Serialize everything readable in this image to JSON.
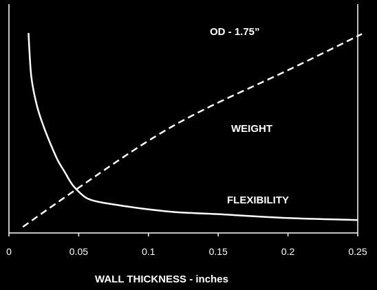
{
  "chart_data": {
    "type": "line",
    "title": "",
    "xlabel": "WALL THICKNESS - inches",
    "ylabel": "",
    "xlim": [
      0,
      0.25
    ],
    "x_ticks": [
      0,
      0.05,
      0.1,
      0.15,
      0.2,
      0.25
    ],
    "x_tick_labels": [
      "0",
      "0.05",
      "0.1",
      "0.15",
      "0.2",
      "0.25"
    ],
    "y_ticks_shown": false,
    "grid": false,
    "legend": "none",
    "background_color": "#000000",
    "line_color": "#ffffff",
    "annotations": [
      "OD - 1.75”",
      "WEIGHT",
      "FLEXIBILITY"
    ],
    "series": [
      {
        "label_text_ref": "annotations.2",
        "style": "solid",
        "points": [
          [
            0.014,
            1.0
          ],
          [
            0.016,
            0.78
          ],
          [
            0.02,
            0.63
          ],
          [
            0.025,
            0.52
          ],
          [
            0.03,
            0.43
          ],
          [
            0.035,
            0.35
          ],
          [
            0.04,
            0.29
          ],
          [
            0.045,
            0.23
          ],
          [
            0.05,
            0.19
          ],
          [
            0.055,
            0.16
          ],
          [
            0.06,
            0.145
          ],
          [
            0.07,
            0.13
          ],
          [
            0.094,
            0.105
          ],
          [
            0.12,
            0.085
          ],
          [
            0.15,
            0.075
          ],
          [
            0.2,
            0.055
          ],
          [
            0.25,
            0.045
          ]
        ]
      },
      {
        "label_text_ref": "annotations.1",
        "style": "dashed",
        "points": [
          [
            0.01,
            0.01
          ],
          [
            0.05,
            0.21
          ],
          [
            0.1,
            0.45
          ],
          [
            0.14,
            0.61
          ],
          [
            0.2,
            0.81
          ],
          [
            0.253,
            0.995
          ]
        ]
      }
    ]
  }
}
